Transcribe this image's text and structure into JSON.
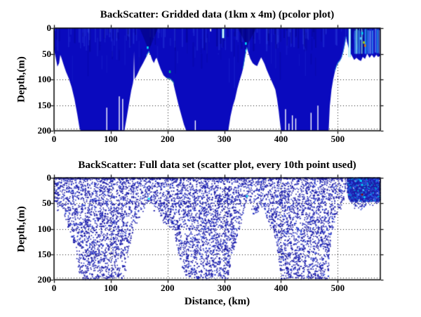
{
  "colors": {
    "background": "#ffffff",
    "axis": "#000000",
    "text": "#000000",
    "pcolor_fill": "#0a0abe",
    "scatter_marker": "#1c1ca8"
  },
  "chart_data": [
    {
      "type": "heatmap",
      "title": "BackScatter: Gridded data (1km x 4m) (pcolor plot)",
      "xlabel": "",
      "ylabel": "Depth,(m)",
      "xlim": [
        0,
        575
      ],
      "ylim": [
        200,
        0
      ],
      "xticks": [
        0,
        100,
        200,
        300,
        400,
        500
      ],
      "yticks": [
        0,
        50,
        100,
        150,
        200
      ],
      "grid": "dotted",
      "colormap_note": "jet colormap, field is almost everywhere at the dark-blue minimum; white = no data below seafloor",
      "fill_color": "#0a0abe",
      "seafloor_profile_km_m": [
        [
          0,
          42
        ],
        [
          3,
          58
        ],
        [
          6,
          75
        ],
        [
          9,
          68
        ],
        [
          11,
          52
        ],
        [
          13,
          58
        ],
        [
          17,
          72
        ],
        [
          21,
          85
        ],
        [
          26,
          98
        ],
        [
          31,
          115
        ],
        [
          36,
          138
        ],
        [
          41,
          168
        ],
        [
          45,
          195
        ],
        [
          47,
          200
        ],
        [
          124,
          200
        ],
        [
          128,
          175
        ],
        [
          132,
          148
        ],
        [
          136,
          122
        ],
        [
          139,
          108
        ],
        [
          140,
          100
        ],
        [
          141,
          45
        ],
        [
          142,
          100
        ],
        [
          146,
          92
        ],
        [
          151,
          80
        ],
        [
          157,
          68
        ],
        [
          163,
          55
        ],
        [
          167,
          47
        ],
        [
          170,
          52
        ],
        [
          173,
          62
        ],
        [
          176,
          68
        ],
        [
          179,
          60
        ],
        [
          181,
          58
        ],
        [
          184,
          68
        ],
        [
          188,
          80
        ],
        [
          193,
          92
        ],
        [
          199,
          98
        ],
        [
          205,
          100
        ],
        [
          210,
          106
        ],
        [
          214,
          125
        ],
        [
          219,
          148
        ],
        [
          224,
          168
        ],
        [
          229,
          188
        ],
        [
          233,
          200
        ],
        [
          307,
          200
        ],
        [
          311,
          172
        ],
        [
          315,
          152
        ],
        [
          319,
          138
        ],
        [
          323,
          118
        ],
        [
          327,
          102
        ],
        [
          331,
          88
        ],
        [
          334,
          75
        ],
        [
          337,
          55
        ],
        [
          340,
          39
        ],
        [
          343,
          50
        ],
        [
          346,
          60
        ],
        [
          350,
          68
        ],
        [
          354,
          72
        ],
        [
          358,
          74
        ],
        [
          361,
          66
        ],
        [
          365,
          57
        ],
        [
          368,
          63
        ],
        [
          371,
          70
        ],
        [
          375,
          82
        ],
        [
          379,
          92
        ],
        [
          383,
          102
        ],
        [
          387,
          112
        ],
        [
          390,
          120
        ],
        [
          393,
          138
        ],
        [
          396,
          162
        ],
        [
          398,
          182
        ],
        [
          400,
          200
        ],
        [
          484,
          200
        ],
        [
          486,
          152
        ],
        [
          489,
          120
        ],
        [
          492,
          100
        ],
        [
          495,
          85
        ],
        [
          498,
          75
        ],
        [
          501,
          68
        ],
        [
          504,
          64
        ],
        [
          507,
          58
        ],
        [
          510,
          46
        ],
        [
          512,
          36
        ],
        [
          514,
          24
        ],
        [
          515,
          18
        ],
        [
          516,
          26
        ],
        [
          518,
          34
        ],
        [
          520,
          42
        ],
        [
          523,
          50
        ],
        [
          526,
          56
        ],
        [
          529,
          62
        ],
        [
          533,
          58
        ],
        [
          537,
          62
        ],
        [
          541,
          64
        ],
        [
          544,
          56
        ],
        [
          548,
          60
        ],
        [
          552,
          50
        ],
        [
          556,
          58
        ],
        [
          560,
          52
        ],
        [
          564,
          58
        ],
        [
          568,
          52
        ],
        [
          571,
          56
        ],
        [
          575,
          54
        ]
      ],
      "data_gap_spikes_km_topdepth": [
        [
          93,
          155
        ],
        [
          115,
          133
        ],
        [
          121,
          138
        ],
        [
          249,
          180
        ],
        [
          408,
          158
        ],
        [
          414,
          186
        ],
        [
          420,
          170
        ],
        [
          426,
          176
        ],
        [
          453,
          165
        ],
        [
          465,
          151
        ]
      ],
      "white_streaks_km_depth": [
        {
          "km": 276,
          "to_depth": 5
        },
        {
          "km": 298,
          "to_depth": 18
        },
        {
          "km": 521,
          "to_depth": 55
        }
      ],
      "peak_shadow_km": [
        167,
        340,
        542
      ],
      "accent_marks": [
        {
          "km": 165,
          "depth": 38,
          "color": "#00e5ff"
        },
        {
          "km": 204,
          "depth": 85,
          "color": "#00c080"
        },
        {
          "km": 338,
          "depth": 30,
          "color": "#00e5ff"
        },
        {
          "km": 339,
          "depth": 44,
          "color": "#40ffff"
        },
        {
          "km": 543,
          "depth": 10,
          "color": "#00e5ff"
        },
        {
          "km": 546,
          "depth": 28,
          "color": "#b0e000"
        },
        {
          "km": 548,
          "depth": 34,
          "color": "#e07000"
        },
        {
          "km": 540,
          "depth": 20,
          "color": "#40c0ff"
        }
      ],
      "bright_region": {
        "km_min": 528,
        "km_max": 575,
        "max_depth": 50
      }
    },
    {
      "type": "scatter",
      "title": "BackScatter: Full data set (scatter plot, every 10th point used)",
      "xlabel": "Distance, (km)",
      "ylabel": "Depth,(m)",
      "xlim": [
        0,
        575
      ],
      "ylim": [
        200,
        0
      ],
      "xticks": [
        0,
        100,
        200,
        300,
        400,
        500
      ],
      "yticks": [
        0,
        50,
        100,
        150,
        200
      ],
      "grid": "dotted",
      "marker_color": "#1c1ca8",
      "marker_size_px": 1.6,
      "approx_points": 9500,
      "dense_region": {
        "km_min": 517,
        "km_max": 575,
        "max_depth": 46
      },
      "accent_points": [
        {
          "km": 167,
          "depth": 41,
          "color": "#00e5ff"
        },
        {
          "km": 340,
          "depth": 36,
          "color": "#00e5ff"
        },
        {
          "km": 541,
          "depth": 6,
          "color": "#00e5ff"
        },
        {
          "km": 543,
          "depth": 14,
          "color": "#00e5ff"
        },
        {
          "km": 545,
          "depth": 24,
          "color": "#40c0ff"
        },
        {
          "km": 543,
          "depth": 33,
          "color": "#990000"
        },
        {
          "km": 547,
          "depth": 38,
          "color": "#00e5ff"
        }
      ],
      "note": "points fill the water column above the same seafloor profile as the gridded plot; white = below seafloor"
    }
  ]
}
